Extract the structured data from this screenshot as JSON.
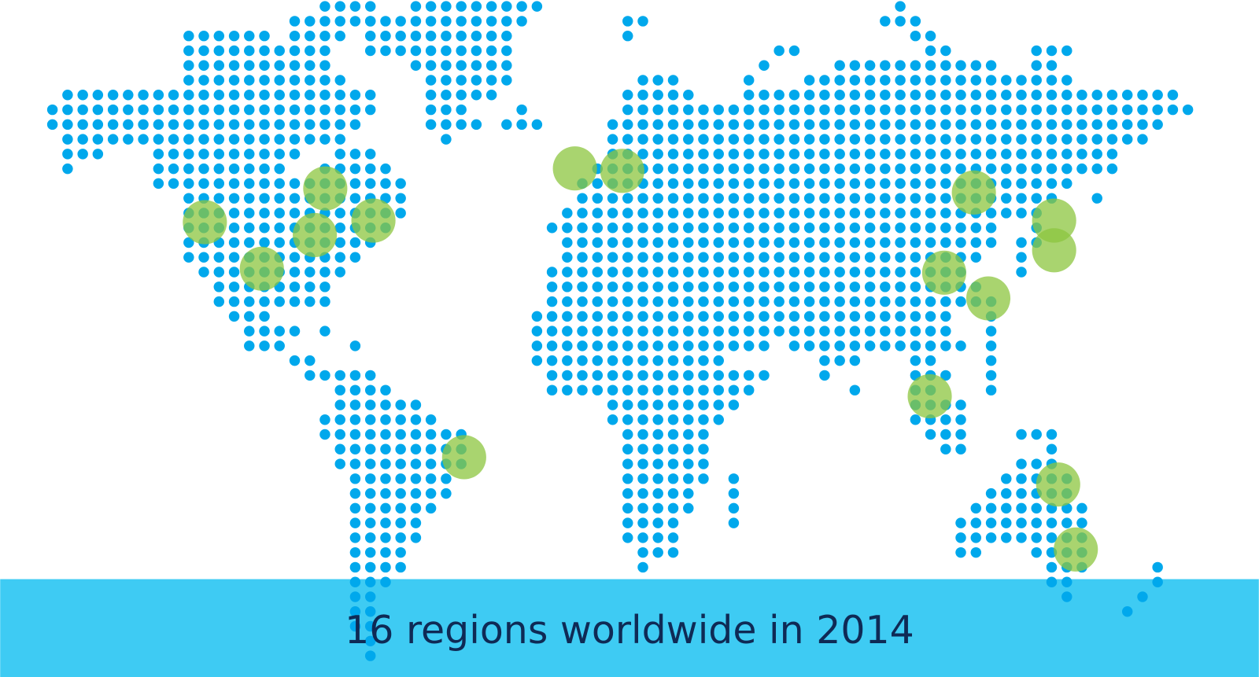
{
  "caption": "16 regions worldwide in 2014"
}
